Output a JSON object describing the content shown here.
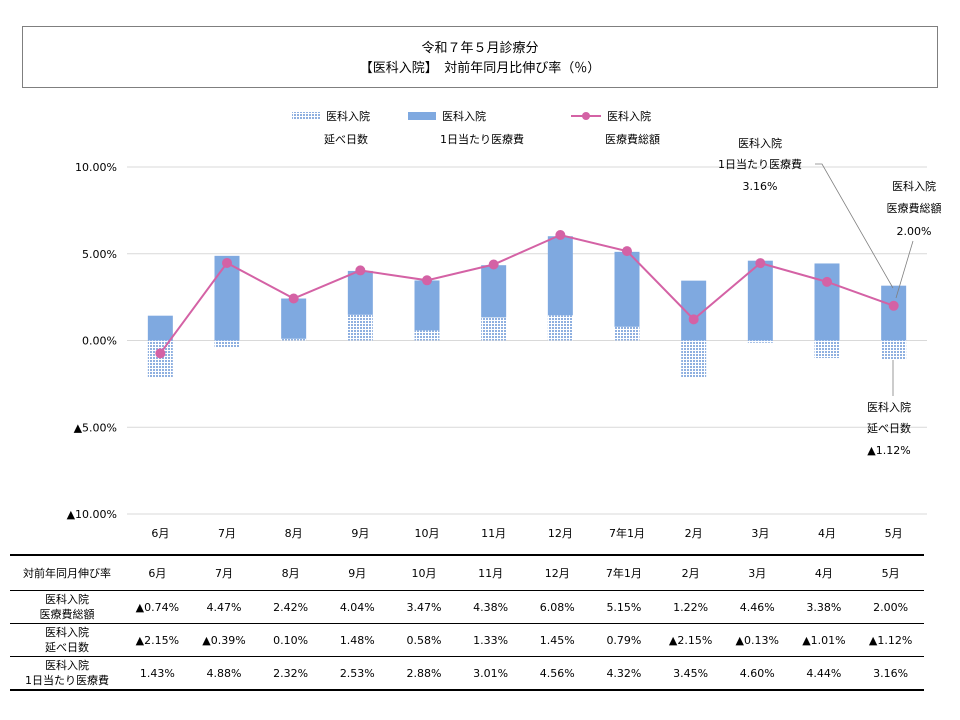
{
  "title": {
    "line1": "令和７年５月診療分",
    "line2": "【医科入院】　対前年同月比伸び率（％）"
  },
  "legend": [
    {
      "line1": "医科入院",
      "line2": "延べ日数"
    },
    {
      "line1": "医科入院",
      "line2": "1日当たり医療費"
    },
    {
      "line1": "医科入院",
      "line2": "医療費総額"
    }
  ],
  "colors": {
    "bar": "#7fa9e0",
    "bar_pattern": "#9fb8e4",
    "line": "#d462a5",
    "grid": "#d9d9d9"
  },
  "callouts": {
    "per_day": {
      "line1": "医科入院",
      "line2": "1日当たり医療費",
      "line3": "3.16%"
    },
    "total": {
      "line1": "医科入院",
      "line2": "医療費総額",
      "line3": "2.00%"
    },
    "days": {
      "line1": "医科入院",
      "line2": "延べ日数",
      "line3": "▲1.12%"
    }
  },
  "chart_data": {
    "type": "bar",
    "categories": [
      "6月",
      "7月",
      "8月",
      "9月",
      "10月",
      "11月",
      "12月",
      "7年1月",
      "2月",
      "3月",
      "4月",
      "5月"
    ],
    "series": [
      {
        "name": "医科入院 延べ日数",
        "values": [
          -2.15,
          -0.39,
          0.1,
          1.48,
          0.58,
          1.33,
          1.45,
          0.79,
          -2.15,
          -0.13,
          -1.01,
          -1.12
        ]
      },
      {
        "name": "医科入院 1日当たり医療費",
        "values": [
          1.43,
          4.88,
          2.32,
          2.53,
          2.88,
          3.01,
          4.56,
          4.32,
          3.45,
          4.6,
          4.44,
          3.16
        ]
      },
      {
        "name": "医科入院 医療費総額",
        "values": [
          -0.74,
          4.47,
          2.42,
          4.04,
          3.47,
          4.38,
          6.08,
          5.15,
          1.22,
          4.46,
          3.38,
          2.0
        ]
      }
    ],
    "yticks": [
      "10.00%",
      "5.00%",
      "0.00%",
      "▲5.00%",
      "▲10.00%"
    ],
    "ylim": [
      -10,
      10
    ],
    "grid": true,
    "legend_position": "top"
  },
  "table": {
    "header": [
      "対前年同月伸び率",
      "6月",
      "7月",
      "8月",
      "9月",
      "10月",
      "11月",
      "12月",
      "7年1月",
      "2月",
      "3月",
      "4月",
      "5月"
    ],
    "rows": [
      {
        "label1": "医科入院",
        "label2": "医療費総額",
        "cells": [
          "▲0.74%",
          "4.47%",
          "2.42%",
          "4.04%",
          "3.47%",
          "4.38%",
          "6.08%",
          "5.15%",
          "1.22%",
          "4.46%",
          "3.38%",
          "2.00%"
        ]
      },
      {
        "label1": "医科入院",
        "label2": "延べ日数",
        "cells": [
          "▲2.15%",
          "▲0.39%",
          "0.10%",
          "1.48%",
          "0.58%",
          "1.33%",
          "1.45%",
          "0.79%",
          "▲2.15%",
          "▲0.13%",
          "▲1.01%",
          "▲1.12%"
        ]
      },
      {
        "label1": "医科入院",
        "label2": "1日当たり医療費",
        "cells": [
          "1.43%",
          "4.88%",
          "2.32%",
          "2.53%",
          "2.88%",
          "3.01%",
          "4.56%",
          "4.32%",
          "3.45%",
          "4.60%",
          "4.44%",
          "3.16%"
        ]
      }
    ]
  }
}
